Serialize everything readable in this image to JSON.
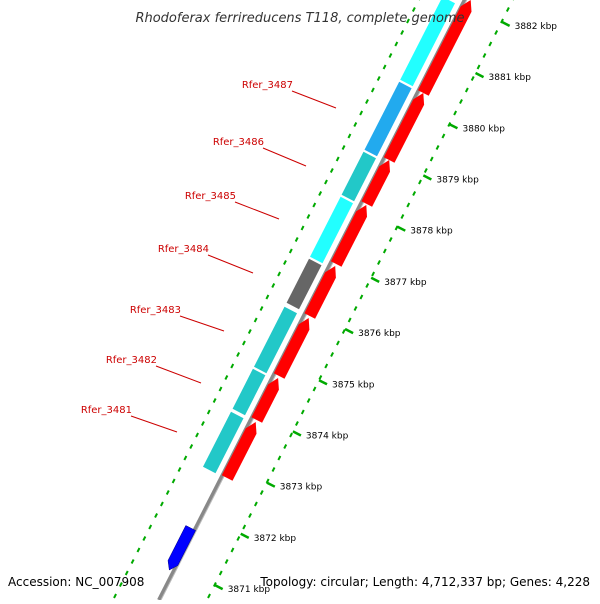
{
  "title": "Rhodoferax ferrireducens T118, complete genome",
  "footer": {
    "accession": "Accession: NC_007908",
    "topology": "Topology: circular; Length: 4,712,337 bp; Genes: 4,228"
  },
  "ruler_labels": [
    "3871 kbp",
    "3872 kbp",
    "3873 kbp",
    "3874 kbp",
    "3875 kbp",
    "3876 kbp",
    "3877 kbp",
    "3878 kbp",
    "3879 kbp",
    "3880 kbp",
    "3881 kbp",
    "3882 kbp"
  ],
  "gene_labels": [
    "Rfer_3481",
    "Rfer_3482",
    "Rfer_3483",
    "Rfer_3484",
    "Rfer_3485",
    "Rfer_3486",
    "Rfer_3487"
  ],
  "colors": {
    "forward_cds": "#ff0000",
    "reverse_cds": "#0000ff",
    "feature_teal": "#22c8c8",
    "feature_cyan": "#22ffff",
    "feature_blue": "#22aaee",
    "feature_gray": "#666666",
    "ruler_tick": "#00aa00",
    "backbone": "#888888",
    "label": "#cc0000"
  }
}
